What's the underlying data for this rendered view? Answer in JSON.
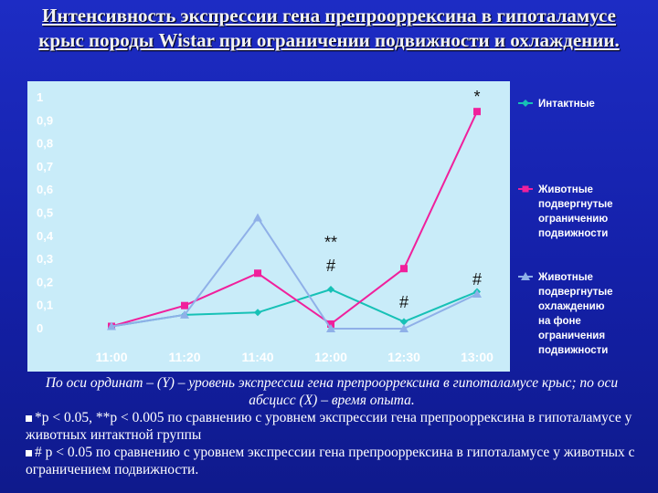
{
  "title": "Интенсивность экспрессии гена препрооррексина в гипоталамусе крыс породы Wistar при ограничении подвижности и охлаждении.",
  "caption": {
    "axis_note": "По оси ординат – (Y) – уровень экспрессии гена препрооррексина в гипоталамусе крыс; по оси абсцисс (X) – время опыта.",
    "note1": "*p < 0.05, **p < 0.005  по сравнению с уровнем экспрессии гена препрооррексина в гипоталамусе у животных интактной группы",
    "note2": "# p < 0.05 по сравнению с уровнем экспрессии гена препрооррексина в гипоталамусе у животных с ограничением подвижности."
  },
  "colors": {
    "plot_bg": "#c9ecf9",
    "intact": "#17c1b6",
    "restricted": "#f0209c",
    "cooled": "#8fb0e8"
  },
  "chart_data": {
    "type": "line",
    "categories": [
      "11:00",
      "11:20",
      "11:40",
      "12:00",
      "12:30",
      "13:00"
    ],
    "ylim": [
      0,
      1
    ],
    "y_ticks": [
      "0",
      "0,1",
      "0,2",
      "0,3",
      "0,4",
      "0,5",
      "0,6",
      "0,7",
      "0,8",
      "0,9",
      "1"
    ],
    "grid": false,
    "legend_position": "right",
    "series": [
      {
        "name": "Интактные",
        "marker": "diamond",
        "color_key": "intact",
        "values": [
          0.01,
          0.06,
          0.07,
          0.17,
          0.03,
          0.16
        ]
      },
      {
        "name": "Животные подвергнутые ограничению подвижности",
        "marker": "square",
        "color_key": "restricted",
        "values": [
          0.01,
          0.1,
          0.24,
          0.02,
          0.26,
          0.94
        ]
      },
      {
        "name": "Животные подвергнутые охлаждению на фоне ограничения подвижности",
        "marker": "triangle",
        "color_key": "cooled",
        "values": [
          0.01,
          0.06,
          0.48,
          0.0,
          0.0,
          0.15
        ]
      }
    ],
    "annotations": [
      {
        "text": "*",
        "category": "13:00",
        "y": 0.98
      },
      {
        "text": "**",
        "category": "12:00",
        "y": 0.35
      },
      {
        "text": "#",
        "category": "12:00",
        "y": 0.25
      },
      {
        "text": "#",
        "category": "12:30",
        "y": 0.09
      },
      {
        "text": "#",
        "category": "13:00",
        "y": 0.19
      }
    ],
    "legend_lines": [
      [
        "Интактные"
      ],
      [
        "Животные",
        "подвергнутые",
        "ограничению",
        "подвижности"
      ],
      [
        "Животные",
        "подвергнутые",
        "охлаждению",
        "на фоне",
        "ограничения",
        "подвижности"
      ]
    ]
  }
}
